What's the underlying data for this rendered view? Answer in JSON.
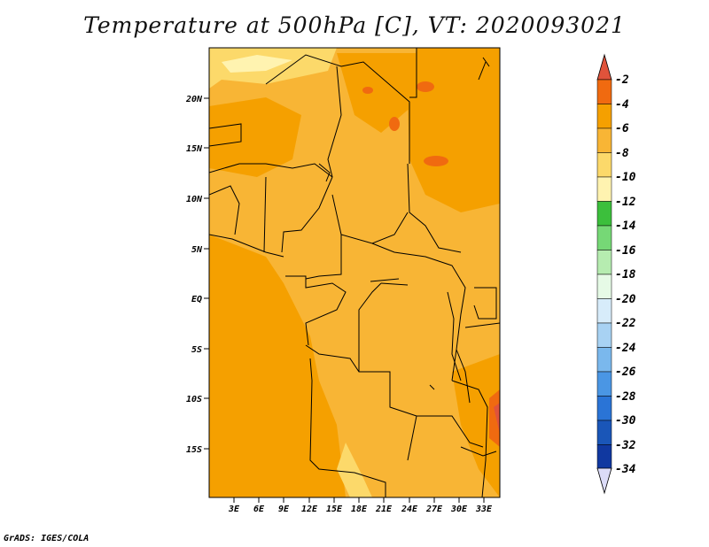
{
  "title": "Temperature at 500hPa [C], VT: 2020093021",
  "footer": "GrADS: IGES/COLA",
  "map": {
    "lat_ticks": [
      "20N",
      "15N",
      "10N",
      "5N",
      "EQ",
      "5S",
      "10S",
      "15S"
    ],
    "lon_ticks": [
      "3E",
      "6E",
      "9E",
      "12E",
      "15E",
      "18E",
      "21E",
      "24E",
      "27E",
      "30E",
      "33E"
    ]
  },
  "colorbar": {
    "labels": [
      "-2",
      "-4",
      "-6",
      "-8",
      "-10",
      "-12",
      "-14",
      "-16",
      "-18",
      "-20",
      "-22",
      "-24",
      "-26",
      "-28",
      "-30",
      "-32",
      "-34"
    ],
    "colors": [
      "#e0533b",
      "#f06a10",
      "#f5a000",
      "#f8b535",
      "#fcd96a",
      "#fff3b0",
      "#3cbf3c",
      "#76d876",
      "#b6ecb0",
      "#e6fae6",
      "#d7ecfa",
      "#a8d2f3",
      "#7ab8ed",
      "#4a96e4",
      "#2a74d6",
      "#1a56b8",
      "#1038a0",
      "#0c1d70",
      "#dcdcf8"
    ]
  }
}
